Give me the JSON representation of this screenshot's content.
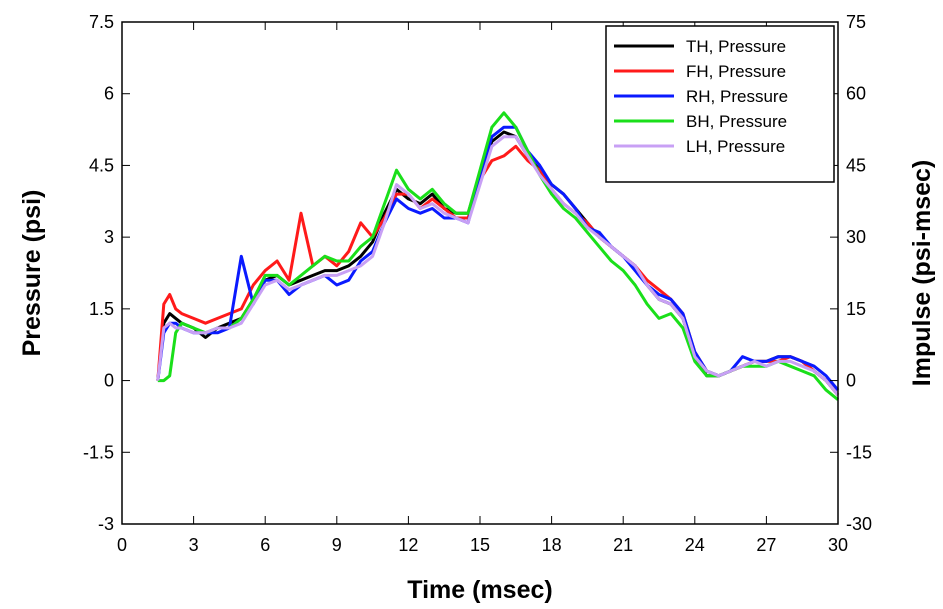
{
  "chart_data": {
    "type": "line",
    "title": "",
    "xlabel": "Time (msec)",
    "ylabel": "Pressure (psi)",
    "y2label": "Impulse (psi-msec)",
    "xlim": [
      0,
      30
    ],
    "ylim": [
      -3,
      7.5
    ],
    "y2lim": [
      -30,
      75
    ],
    "x_ticks": [
      "0",
      "3",
      "6",
      "9",
      "12",
      "15",
      "18",
      "21",
      "24",
      "27",
      "30"
    ],
    "y_ticks": [
      "-3",
      "-1.5",
      "0",
      "1.5",
      "3",
      "4.5",
      "6",
      "7.5"
    ],
    "y2_ticks": [
      "-30",
      "-15",
      "0",
      "15",
      "30",
      "45",
      "60",
      "75"
    ],
    "grid": false,
    "legend_position": "top-right",
    "x": [
      1.5,
      1.75,
      2,
      2.25,
      2.5,
      3,
      3.5,
      4,
      4.5,
      5,
      5.5,
      6,
      6.5,
      7,
      7.5,
      8,
      8.5,
      9,
      9.5,
      10,
      10.5,
      11,
      11.5,
      12,
      12.5,
      13,
      13.5,
      14,
      14.5,
      15,
      15.5,
      16,
      16.5,
      17,
      17.5,
      18,
      18.5,
      19,
      19.5,
      20,
      20.5,
      21,
      21.5,
      22,
      22.5,
      23,
      23.5,
      24,
      24.5,
      25,
      25.5,
      26,
      26.5,
      27,
      27.5,
      28,
      28.5,
      29,
      29.5,
      30
    ],
    "series": [
      {
        "name": "TH, Pressure",
        "color": "#000000",
        "values": [
          0.0,
          1.2,
          1.4,
          1.3,
          1.2,
          1.1,
          0.9,
          1.1,
          1.2,
          1.3,
          1.7,
          2.1,
          2.2,
          2.0,
          2.1,
          2.2,
          2.3,
          2.3,
          2.4,
          2.6,
          2.9,
          3.5,
          4.0,
          3.8,
          3.7,
          3.9,
          3.6,
          3.5,
          3.5,
          4.3,
          5.0,
          5.2,
          5.1,
          4.7,
          4.4,
          4.1,
          3.9,
          3.6,
          3.3,
          3.0,
          2.8,
          2.6,
          2.4,
          2.0,
          1.7,
          1.6,
          1.3,
          0.5,
          0.1,
          0.1,
          0.2,
          0.3,
          0.4,
          0.4,
          0.5,
          0.5,
          0.4,
          0.2,
          0.0,
          -0.3
        ]
      },
      {
        "name": "FH, Pressure",
        "color": "#ff1a1a",
        "values": [
          0.0,
          1.6,
          1.8,
          1.5,
          1.4,
          1.3,
          1.2,
          1.3,
          1.4,
          1.5,
          2.0,
          2.3,
          2.5,
          2.1,
          3.5,
          2.4,
          2.6,
          2.4,
          2.7,
          3.3,
          3.0,
          3.4,
          3.9,
          3.9,
          3.6,
          3.8,
          3.6,
          3.4,
          3.4,
          4.2,
          4.6,
          4.7,
          4.9,
          4.6,
          4.4,
          4.0,
          3.7,
          3.5,
          3.3,
          3.0,
          2.8,
          2.6,
          2.4,
          2.1,
          1.9,
          1.7,
          1.4,
          0.6,
          0.2,
          0.1,
          0.2,
          0.3,
          0.4,
          0.4,
          0.4,
          0.5,
          0.4,
          0.2,
          0.0,
          -0.3
        ]
      },
      {
        "name": "RH, Pressure",
        "color": "#0a1aff",
        "values": [
          0.0,
          1.0,
          1.2,
          1.2,
          1.1,
          1.0,
          1.0,
          1.0,
          1.1,
          2.6,
          1.6,
          2.1,
          2.1,
          1.8,
          2.0,
          2.1,
          2.2,
          2.0,
          2.1,
          2.5,
          2.7,
          3.3,
          3.8,
          3.6,
          3.5,
          3.6,
          3.4,
          3.4,
          3.3,
          4.3,
          5.1,
          5.3,
          5.3,
          4.8,
          4.5,
          4.1,
          3.9,
          3.6,
          3.2,
          3.1,
          2.8,
          2.6,
          2.3,
          2.0,
          1.8,
          1.7,
          1.4,
          0.6,
          0.2,
          0.1,
          0.2,
          0.5,
          0.4,
          0.4,
          0.5,
          0.5,
          0.4,
          0.3,
          0.1,
          -0.2
        ]
      },
      {
        "name": "BH, Pressure",
        "color": "#1adf1a",
        "values": [
          0.0,
          0.0,
          0.1,
          1.0,
          1.2,
          1.1,
          1.0,
          1.1,
          1.1,
          1.3,
          1.7,
          2.2,
          2.2,
          2.0,
          2.2,
          2.4,
          2.6,
          2.5,
          2.5,
          2.8,
          3.0,
          3.7,
          4.4,
          4.0,
          3.8,
          4.0,
          3.7,
          3.5,
          3.5,
          4.4,
          5.3,
          5.6,
          5.3,
          4.8,
          4.3,
          3.9,
          3.6,
          3.4,
          3.1,
          2.8,
          2.5,
          2.3,
          2.0,
          1.6,
          1.3,
          1.4,
          1.1,
          0.4,
          0.1,
          0.1,
          0.2,
          0.3,
          0.3,
          0.3,
          0.4,
          0.3,
          0.2,
          0.1,
          -0.2,
          -0.4
        ]
      },
      {
        "name": "LH, Pressure",
        "color": "#c8a0f5",
        "values": [
          0.0,
          1.1,
          1.2,
          1.1,
          1.1,
          1.0,
          1.0,
          1.1,
          1.1,
          1.2,
          1.6,
          2.0,
          2.1,
          1.9,
          2.0,
          2.1,
          2.2,
          2.2,
          2.3,
          2.4,
          2.6,
          3.3,
          4.1,
          3.9,
          3.6,
          3.7,
          3.5,
          3.4,
          3.3,
          4.1,
          4.9,
          5.1,
          5.1,
          4.7,
          4.3,
          4.0,
          3.7,
          3.5,
          3.2,
          3.0,
          2.8,
          2.6,
          2.4,
          2.0,
          1.7,
          1.6,
          1.3,
          0.5,
          0.2,
          0.1,
          0.2,
          0.3,
          0.4,
          0.3,
          0.4,
          0.4,
          0.3,
          0.2,
          0.0,
          -0.3
        ]
      }
    ]
  }
}
